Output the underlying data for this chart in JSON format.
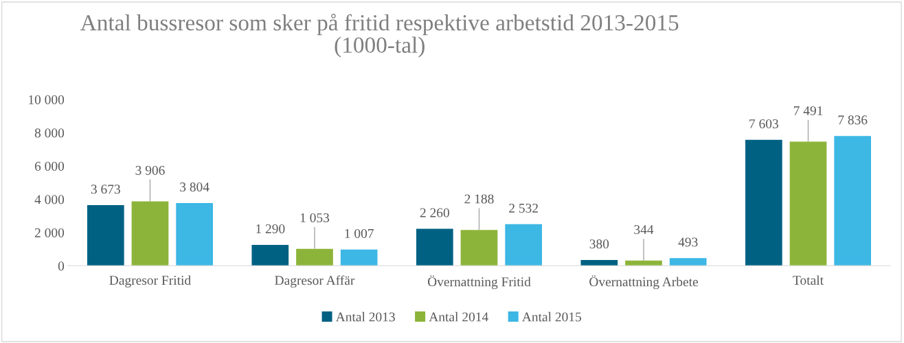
{
  "chart_data": {
    "type": "bar",
    "title": "Antal bussresor som sker på fritid respektive arbetstid 2013-2015\n(1000-tal)",
    "categories": [
      "Dagresor Fritid",
      "Dagresor Affär",
      "Övernattning Fritid",
      "Övernattning Arbete",
      "Totalt"
    ],
    "series": [
      {
        "name": "Antal 2013",
        "color": "#006183",
        "values": [
          3673,
          1290,
          2260,
          380,
          7603
        ],
        "value_labels": [
          "3 673",
          "1 290",
          "2 260",
          "380",
          "7 603"
        ]
      },
      {
        "name": "Antal 2014",
        "color": "#8db43a",
        "values": [
          3906,
          1053,
          2188,
          344,
          7491
        ],
        "value_labels": [
          "3 906",
          "1 053",
          "2 188",
          "344",
          "7 491"
        ]
      },
      {
        "name": "Antal 2015",
        "color": "#3db7e4",
        "values": [
          3804,
          1007,
          2532,
          493,
          7836
        ],
        "value_labels": [
          "3 804",
          "1 007",
          "2 532",
          "493",
          "7 836"
        ]
      }
    ],
    "ylim": [
      0,
      10000
    ],
    "yticks": [
      0,
      {
        "value": 2000,
        "label": "2 000"
      },
      {
        "value": 4000,
        "label": "4 000"
      },
      {
        "value": 6000,
        "label": "6 000"
      },
      {
        "value": 8000,
        "label": "8 000"
      },
      {
        "value": 10000,
        "label": "10 000"
      }
    ],
    "grid": false,
    "legend": "bottom"
  }
}
